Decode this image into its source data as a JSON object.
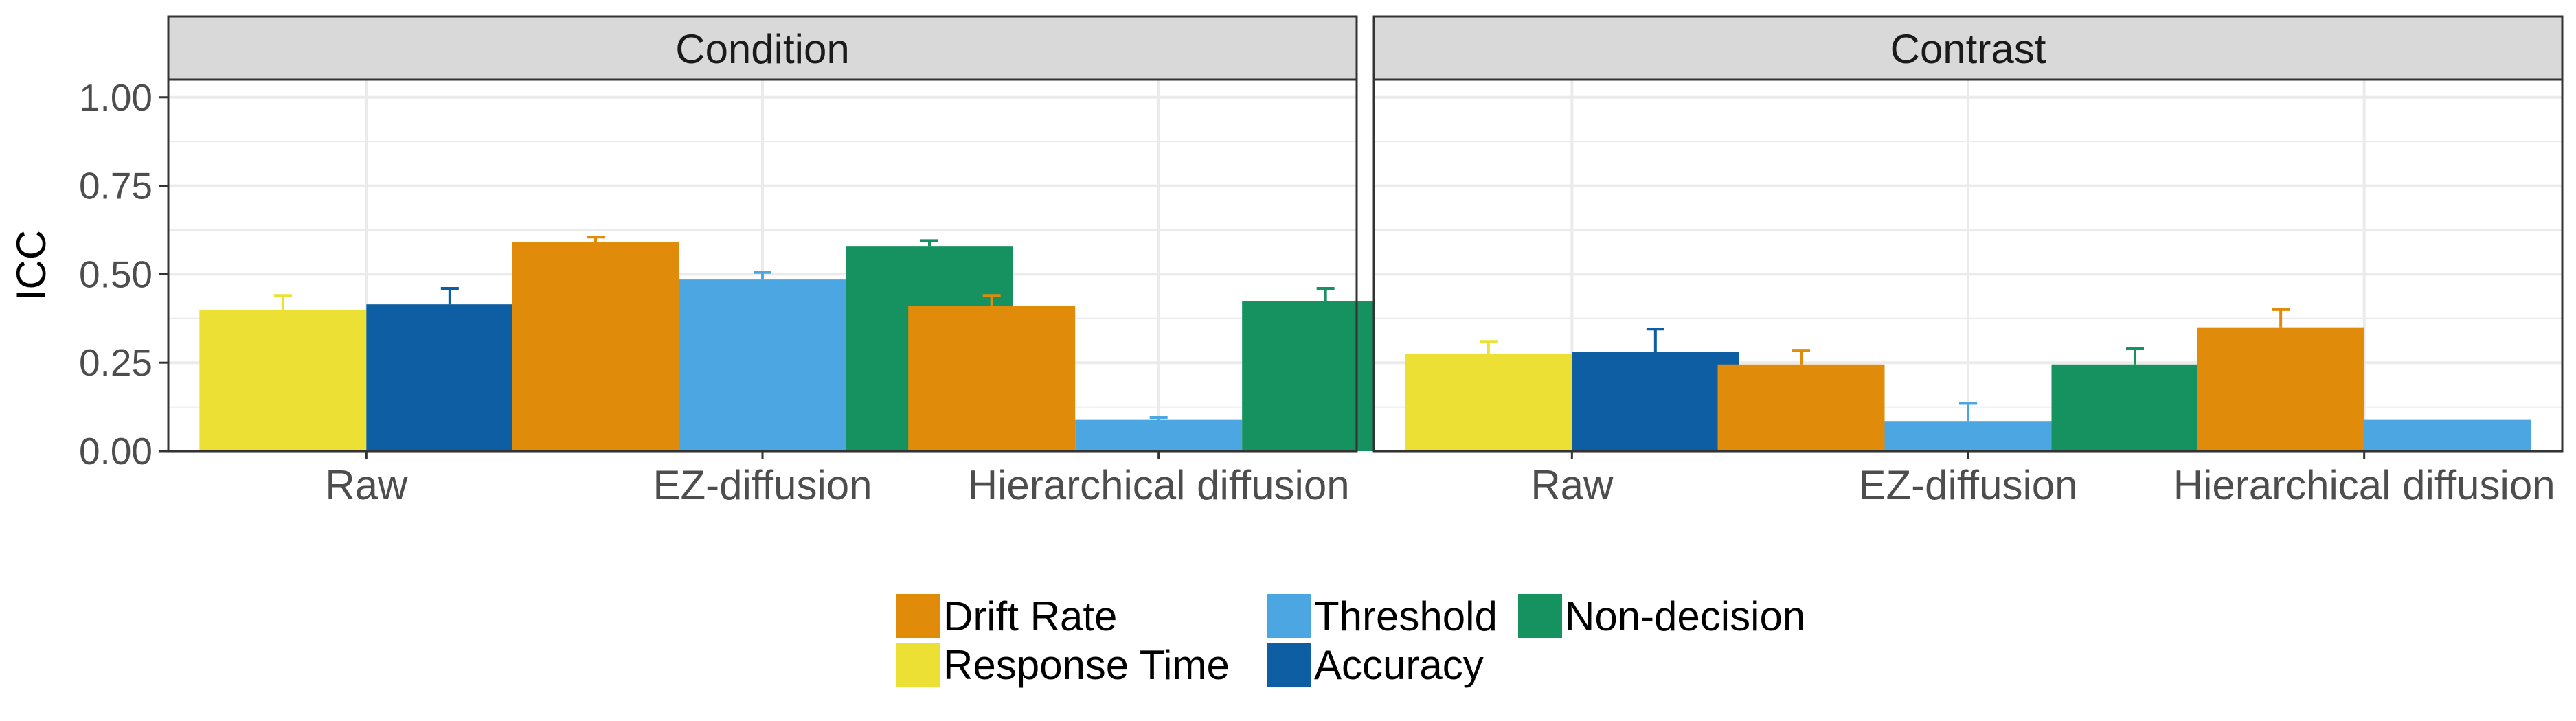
{
  "chart_data": {
    "type": "bar",
    "ylabel": "ICC",
    "ylim": [
      0,
      1.05
    ],
    "yticks": [
      "0.00",
      "0.25",
      "0.50",
      "0.75",
      "1.00"
    ],
    "grid": true,
    "legend_position": "bottom",
    "series_order": [
      "Response Time",
      "Accuracy",
      "Drift Rate",
      "Threshold",
      "Non-decision"
    ],
    "legend": [
      {
        "name": "Drift Rate",
        "color": "#E08B0A"
      },
      {
        "name": "Threshold",
        "color": "#4CA6E2"
      },
      {
        "name": "Non-decision",
        "color": "#169261"
      },
      {
        "name": "Response Time",
        "color": "#ECE035"
      },
      {
        "name": "Accuracy",
        "color": "#0D5EA2"
      }
    ],
    "panels": [
      {
        "title": "Condition",
        "categories": [
          "Raw",
          "EZ-diffusion",
          "Hierarchical diffusion"
        ],
        "groups": [
          {
            "category": "Raw",
            "bars": [
              {
                "series": "Response Time",
                "value": 0.4,
                "err": 0.44
              },
              {
                "series": "Accuracy",
                "value": 0.415,
                "err": 0.46
              }
            ]
          },
          {
            "category": "EZ-diffusion",
            "bars": [
              {
                "series": "Drift Rate",
                "value": 0.59,
                "err": 0.605
              },
              {
                "series": "Threshold",
                "value": 0.485,
                "err": 0.505
              },
              {
                "series": "Non-decision",
                "value": 0.58,
                "err": 0.595
              }
            ]
          },
          {
            "category": "Hierarchical diffusion",
            "bars": [
              {
                "series": "Drift Rate",
                "value": 0.41,
                "err": 0.44
              },
              {
                "series": "Threshold",
                "value": 0.09,
                "err": 0.095
              },
              {
                "series": "Non-decision",
                "value": 0.425,
                "err": 0.46
              }
            ]
          }
        ]
      },
      {
        "title": "Contrast",
        "categories": [
          "Raw",
          "EZ-diffusion",
          "Hierarchical diffusion"
        ],
        "groups": [
          {
            "category": "Raw",
            "bars": [
              {
                "series": "Response Time",
                "value": 0.275,
                "err": 0.31
              },
              {
                "series": "Accuracy",
                "value": 0.28,
                "err": 0.345
              }
            ]
          },
          {
            "category": "EZ-diffusion",
            "bars": [
              {
                "series": "Drift Rate",
                "value": 0.245,
                "err": 0.285
              },
              {
                "series": "Threshold",
                "value": 0.085,
                "err": 0.135
              },
              {
                "series": "Non-decision",
                "value": 0.245,
                "err": 0.29
              }
            ]
          },
          {
            "category": "Hierarchical diffusion",
            "bars": [
              {
                "series": "Drift Rate",
                "value": 0.35,
                "err": 0.4
              },
              {
                "series": "Threshold",
                "value": 0.09,
                "err": null
              }
            ]
          }
        ]
      }
    ]
  }
}
